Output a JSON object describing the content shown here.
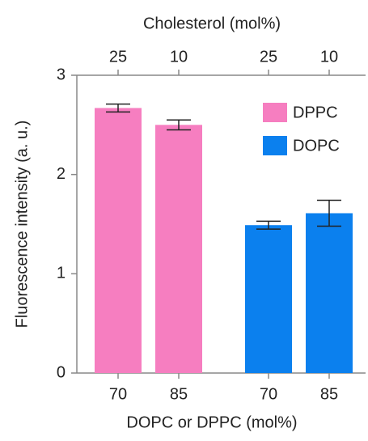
{
  "chart_data": {
    "type": "bar",
    "title": "Cholesterol (mol%)",
    "x_label": "DOPC or DPPC (mol%)",
    "y_label": "Fluorescence intensity (a. u.)",
    "categories": [
      "70",
      "85",
      "70",
      "85"
    ],
    "top_categories": [
      "25",
      "10",
      "25",
      "10"
    ],
    "series": [
      {
        "name": "DPPC",
        "color": "#f67ec0",
        "values": [
          2.67,
          2.5,
          null,
          null
        ],
        "errors": [
          0.04,
          0.05,
          null,
          null
        ]
      },
      {
        "name": "DOPC",
        "color": "#0b80ee",
        "values": [
          null,
          null,
          1.49,
          1.61
        ],
        "errors": [
          null,
          null,
          0.04,
          0.13
        ]
      }
    ],
    "ylim": [
      0,
      3
    ],
    "yticks": [
      0,
      1,
      2,
      3
    ],
    "legend": "upper right"
  }
}
